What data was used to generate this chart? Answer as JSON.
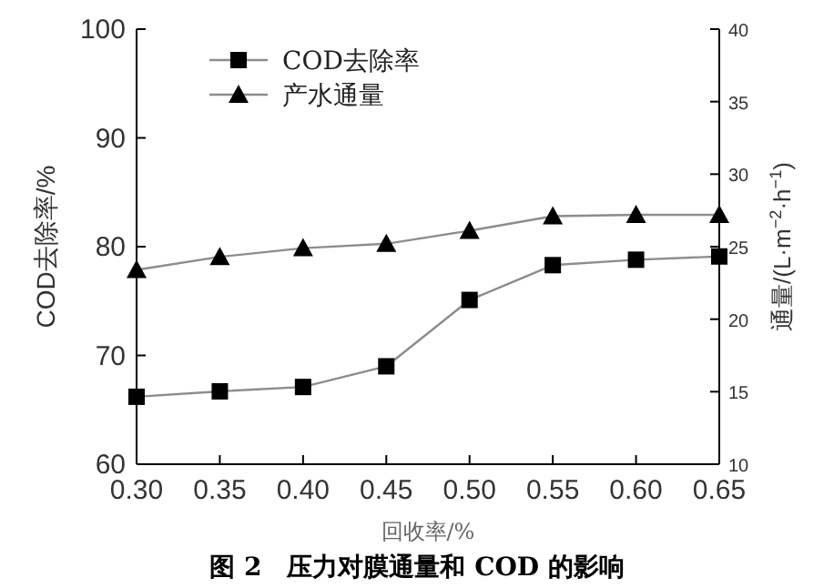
{
  "chart_data": {
    "type": "line",
    "xlabel": "回收率/%",
    "ylabel": "COD去除率/%",
    "y2label": "通量/(L·m$^{−2}$·h$^{−1}$)",
    "x": [
      0.3,
      0.35,
      0.4,
      0.45,
      0.5,
      0.55,
      0.6,
      0.65
    ],
    "xlim": [
      0.3,
      0.65
    ],
    "xticks": [
      {
        "value": 0.3,
        "label": "0.30"
      },
      {
        "value": 0.35,
        "label": "0.35"
      },
      {
        "value": 0.4,
        "label": "0.40"
      },
      {
        "value": 0.45,
        "label": "0.45"
      },
      {
        "value": 0.5,
        "label": "0.50"
      },
      {
        "value": 0.55,
        "label": "0.55"
      },
      {
        "value": 0.6,
        "label": "0.60"
      },
      {
        "value": 0.65,
        "label": "0.65"
      }
    ],
    "ylim": [
      60,
      100
    ],
    "yticks": [
      60,
      70,
      80,
      90,
      100
    ],
    "y2lim": [
      10,
      40
    ],
    "y2ticks": [
      10,
      15,
      20,
      25,
      30,
      35,
      40
    ],
    "series": [
      {
        "name": "COD去除率",
        "color": "#000000",
        "marker": "square",
        "values": [
          66.2,
          66.7,
          67.1,
          69.0,
          75.1,
          78.3,
          78.8,
          79.1
        ]
      },
      {
        "name": "产水通量",
        "color": "#000000",
        "marker": "triangle",
        "axis": "y2",
        "values": [
          23.4,
          24.3,
          24.9,
          25.2,
          26.1,
          27.1,
          27.2,
          27.2
        ]
      }
    ],
    "legend": "top left",
    "grid": false,
    "annotations": [
      "图 2　压力对膜通量和 COD 的影响"
    ]
  }
}
